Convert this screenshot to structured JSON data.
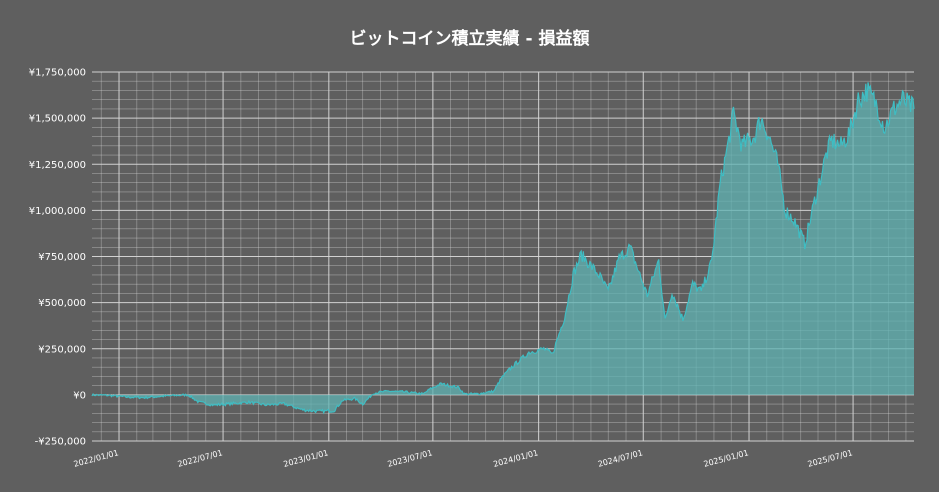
{
  "chart_data": {
    "type": "area",
    "title": "ビットコイン積立実績 - 損益額",
    "xlabel": "",
    "ylabel": "",
    "ylim": [
      -250000,
      1750000
    ],
    "xlim": [
      "2021-11-15",
      "2025-10-15"
    ],
    "grid": true,
    "colors": {
      "background": "#5f5f5f",
      "line": "#3fbdc3",
      "fill": "#5fb3b3",
      "grid": "#d8d8d8"
    },
    "y_ticks": [
      {
        "value": -250000,
        "label": "-¥250,000"
      },
      {
        "value": 0,
        "label": "¥0"
      },
      {
        "value": 250000,
        "label": "¥250,000"
      },
      {
        "value": 500000,
        "label": "¥500,000"
      },
      {
        "value": 750000,
        "label": "¥750,000"
      },
      {
        "value": 1000000,
        "label": "¥1,000,000"
      },
      {
        "value": 1250000,
        "label": "¥1,250,000"
      },
      {
        "value": 1500000,
        "label": "¥1,500,000"
      },
      {
        "value": 1750000,
        "label": "¥1,750,000"
      }
    ],
    "x_ticks": [
      {
        "date": "2022-01-01",
        "label": "2022/01/01"
      },
      {
        "date": "2022-07-01",
        "label": "2022/07/01"
      },
      {
        "date": "2023-01-01",
        "label": "2023/01/01"
      },
      {
        "date": "2023-07-01",
        "label": "2023/07/01"
      },
      {
        "date": "2024-01-01",
        "label": "2024/01/01"
      },
      {
        "date": "2024-07-01",
        "label": "2024/07/01"
      },
      {
        "date": "2025-01-01",
        "label": "2025/01/01"
      },
      {
        "date": "2025-07-01",
        "label": "2025/07/01"
      }
    ],
    "series": [
      {
        "points": [
          [
            "2021-11-15",
            0
          ],
          [
            "2021-12-15",
            -3000
          ],
          [
            "2022-01-15",
            -12000
          ],
          [
            "2022-02-15",
            -15000
          ],
          [
            "2022-03-15",
            -8000
          ],
          [
            "2022-04-15",
            -2000
          ],
          [
            "2022-05-01",
            0
          ],
          [
            "2022-05-20",
            -40000
          ],
          [
            "2022-06-15",
            -55000
          ],
          [
            "2022-07-15",
            -48000
          ],
          [
            "2022-08-15",
            -40000
          ],
          [
            "2022-09-15",
            -55000
          ],
          [
            "2022-10-15",
            -48000
          ],
          [
            "2022-11-15",
            -80000
          ],
          [
            "2022-12-15",
            -90000
          ],
          [
            "2023-01-10",
            -85000
          ],
          [
            "2023-01-25",
            -30000
          ],
          [
            "2023-02-15",
            -20000
          ],
          [
            "2023-03-01",
            -50000
          ],
          [
            "2023-03-20",
            10000
          ],
          [
            "2023-04-15",
            20000
          ],
          [
            "2023-05-15",
            15000
          ],
          [
            "2023-06-15",
            5000
          ],
          [
            "2023-06-25",
            30000
          ],
          [
            "2023-07-15",
            60000
          ],
          [
            "2023-08-15",
            40000
          ],
          [
            "2023-08-25",
            5000
          ],
          [
            "2023-09-15",
            5000
          ],
          [
            "2023-10-15",
            20000
          ],
          [
            "2023-10-28",
            90000
          ],
          [
            "2023-11-15",
            150000
          ],
          [
            "2023-12-15",
            230000
          ],
          [
            "2024-01-10",
            250000
          ],
          [
            "2024-01-25",
            220000
          ],
          [
            "2024-02-15",
            420000
          ],
          [
            "2024-03-01",
            650000
          ],
          [
            "2024-03-15",
            760000
          ],
          [
            "2024-04-01",
            700000
          ],
          [
            "2024-04-15",
            650000
          ],
          [
            "2024-05-01",
            560000
          ],
          [
            "2024-05-20",
            740000
          ],
          [
            "2024-06-08",
            800000
          ],
          [
            "2024-06-25",
            650000
          ],
          [
            "2024-07-08",
            540000
          ],
          [
            "2024-07-28",
            730000
          ],
          [
            "2024-08-08",
            400000
          ],
          [
            "2024-08-20",
            560000
          ],
          [
            "2024-09-08",
            410000
          ],
          [
            "2024-09-25",
            600000
          ],
          [
            "2024-10-10",
            560000
          ],
          [
            "2024-10-28",
            720000
          ],
          [
            "2024-11-12",
            1150000
          ],
          [
            "2024-11-25",
            1350000
          ],
          [
            "2024-12-05",
            1520000
          ],
          [
            "2024-12-20",
            1350000
          ],
          [
            "2025-01-10",
            1400000
          ],
          [
            "2025-01-22",
            1500000
          ],
          [
            "2025-02-05",
            1400000
          ],
          [
            "2025-02-20",
            1250000
          ],
          [
            "2025-03-05",
            1000000
          ],
          [
            "2025-03-20",
            950000
          ],
          [
            "2025-04-08",
            820000
          ],
          [
            "2025-04-25",
            1050000
          ],
          [
            "2025-05-15",
            1300000
          ],
          [
            "2025-05-25",
            1380000
          ],
          [
            "2025-06-10",
            1350000
          ],
          [
            "2025-06-25",
            1420000
          ],
          [
            "2025-07-10",
            1600000
          ],
          [
            "2025-07-25",
            1650000
          ],
          [
            "2025-08-10",
            1580000
          ],
          [
            "2025-08-25",
            1450000
          ],
          [
            "2025-09-10",
            1550000
          ],
          [
            "2025-09-25",
            1600000
          ],
          [
            "2025-10-15",
            1550000
          ]
        ]
      }
    ]
  }
}
